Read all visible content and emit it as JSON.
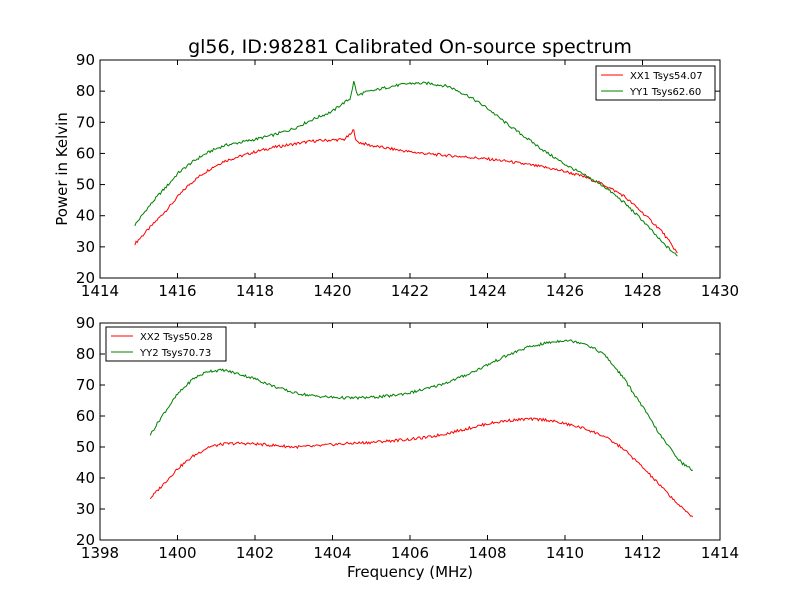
{
  "title": "gl56, ID:98281 Calibrated On-source spectrum",
  "ylabel": "Power in Kelvin",
  "xlabel": "Frequency (MHz)",
  "chart_data": [
    {
      "type": "line",
      "title": "gl56, ID:98281 Calibrated On-source spectrum",
      "ylabel": "Power in Kelvin",
      "xlabel": "",
      "xlim": [
        1414,
        1430
      ],
      "ylim": [
        20,
        90
      ],
      "xticks": [
        "1414",
        "1416",
        "1418",
        "1420",
        "1422",
        "1424",
        "1426",
        "1428",
        "1430"
      ],
      "yticks": [
        "20",
        "30",
        "40",
        "50",
        "60",
        "70",
        "80",
        "90"
      ],
      "grid": false,
      "legend_position": "top-right",
      "series": [
        {
          "name": "XX1 Tsys54.07",
          "color": "#ff0000",
          "x": [
            1414.9,
            1415.2,
            1415.5,
            1415.8,
            1416.0,
            1416.3,
            1416.6,
            1416.9,
            1417.2,
            1417.6,
            1418.0,
            1418.5,
            1419.0,
            1419.5,
            1420.0,
            1420.3,
            1420.5,
            1420.55,
            1420.6,
            1420.7,
            1421.0,
            1421.5,
            1422.0,
            1422.5,
            1423.0,
            1423.5,
            1424.0,
            1424.5,
            1425.0,
            1425.5,
            1426.0,
            1426.5,
            1427.0,
            1427.5,
            1428.0,
            1428.5,
            1428.9
          ],
          "y": [
            31,
            35,
            39,
            43,
            46,
            50,
            53,
            55.5,
            57.5,
            59,
            60.5,
            62,
            63,
            64,
            64.3,
            64.5,
            66.5,
            68,
            64,
            63.5,
            62.5,
            61.5,
            60.5,
            59.8,
            59.3,
            58.8,
            58.2,
            57.5,
            56.5,
            55.5,
            54.2,
            52.5,
            50,
            46.5,
            41,
            35,
            28
          ]
        },
        {
          "name": "YY1 Tsys62.60",
          "color": "#008000",
          "x": [
            1414.9,
            1415.2,
            1415.5,
            1415.8,
            1416.0,
            1416.3,
            1416.6,
            1416.9,
            1417.2,
            1417.6,
            1418.0,
            1418.5,
            1419.0,
            1419.5,
            1420.0,
            1420.2,
            1420.45,
            1420.55,
            1420.65,
            1420.8,
            1421.0,
            1421.5,
            1422.0,
            1422.5,
            1423.0,
            1423.5,
            1424.0,
            1424.5,
            1425.0,
            1425.5,
            1426.0,
            1426.5,
            1427.0,
            1427.5,
            1428.0,
            1428.5,
            1428.9
          ],
          "y": [
            37,
            42,
            46.5,
            50.5,
            53.5,
            56.5,
            59,
            61,
            62.5,
            63.5,
            64.5,
            66,
            68,
            71,
            73.5,
            75.5,
            77.5,
            83,
            78.5,
            79.5,
            80,
            81.5,
            82.5,
            82.5,
            81.5,
            78.5,
            74.5,
            69.5,
            65,
            60.5,
            56.5,
            53,
            49.5,
            44.5,
            38.5,
            31.5,
            27
          ]
        }
      ]
    },
    {
      "type": "line",
      "title": "",
      "ylabel": "",
      "xlabel": "Frequency (MHz)",
      "xlim": [
        1398,
        1414
      ],
      "ylim": [
        20,
        90
      ],
      "xticks": [
        "1398",
        "1400",
        "1402",
        "1404",
        "1406",
        "1408",
        "1410",
        "1412",
        "1414"
      ],
      "yticks": [
        "20",
        "30",
        "40",
        "50",
        "60",
        "70",
        "80",
        "90"
      ],
      "grid": false,
      "legend_position": "top-left",
      "series": [
        {
          "name": "XX2 Tsys50.28",
          "color": "#ff0000",
          "x": [
            1399.3,
            1399.6,
            1400.0,
            1400.4,
            1400.8,
            1401.2,
            1401.6,
            1402.0,
            1402.5,
            1403.0,
            1403.5,
            1404.0,
            1404.5,
            1405.0,
            1405.5,
            1406.0,
            1406.5,
            1407.0,
            1407.5,
            1408.0,
            1408.5,
            1409.0,
            1409.5,
            1410.0,
            1410.5,
            1411.0,
            1411.5,
            1412.0,
            1412.5,
            1413.0,
            1413.3
          ],
          "y": [
            33.5,
            37.5,
            43,
            47,
            50,
            51,
            51.2,
            51,
            50.5,
            50,
            50.2,
            50.8,
            51.2,
            51.5,
            52,
            52.5,
            53.2,
            54.5,
            56,
            57.5,
            58.5,
            59,
            58.8,
            57.5,
            56,
            53.5,
            49.5,
            43.5,
            37,
            30.5,
            27.5
          ]
        },
        {
          "name": "YY2 Tsys70.73",
          "color": "#008000",
          "x": [
            1399.3,
            1399.6,
            1400.0,
            1400.4,
            1400.8,
            1401.2,
            1401.6,
            1402.0,
            1402.5,
            1403.0,
            1403.5,
            1404.0,
            1404.5,
            1405.0,
            1405.5,
            1406.0,
            1406.5,
            1407.0,
            1407.5,
            1408.0,
            1408.5,
            1409.0,
            1409.5,
            1410.0,
            1410.5,
            1411.0,
            1411.5,
            1412.0,
            1412.5,
            1413.0,
            1413.3
          ],
          "y": [
            54,
            60,
            67,
            72,
            74.5,
            74.8,
            73.5,
            72,
            69.5,
            67.5,
            66.5,
            66,
            65.8,
            66,
            66.5,
            67.5,
            69,
            71,
            73.5,
            76.5,
            79.5,
            82,
            83.5,
            84.5,
            83.5,
            80,
            72.5,
            63,
            53,
            45,
            42.5
          ]
        }
      ]
    }
  ]
}
